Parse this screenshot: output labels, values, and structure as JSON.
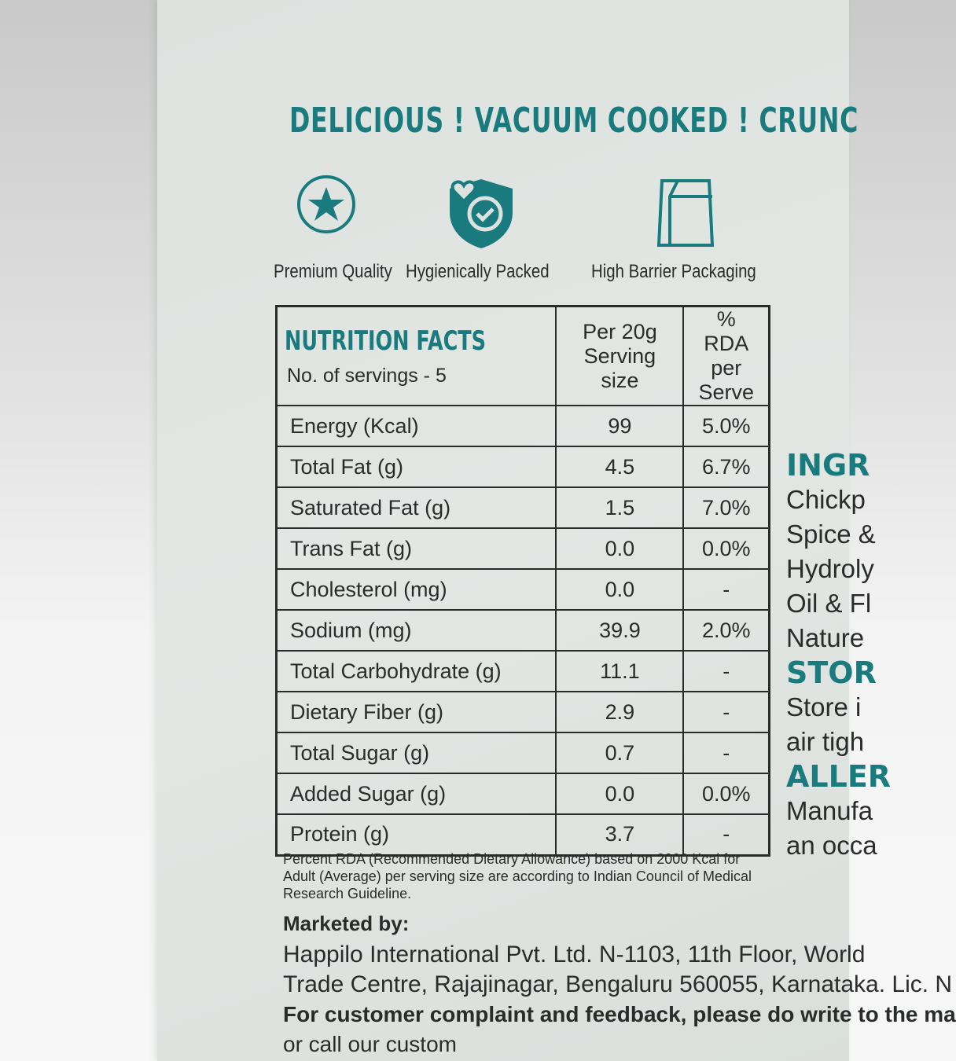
{
  "tagline": "DELICIOUS ! VACUUM COOKED ! CRUNC",
  "badges": [
    {
      "label": "Premium Quality",
      "icon": "star-icon"
    },
    {
      "label": "Hygienically Packed",
      "icon": "shield-check-icon"
    },
    {
      "label": "High Barrier Packaging",
      "icon": "pouch-icon"
    }
  ],
  "nutrition": {
    "title": "NUTRITION FACTS",
    "servings": "No. of servings - 5",
    "col1": "Per 20g Serving size",
    "col2": "% RDA per Serve",
    "rows": [
      {
        "name": "Energy (Kcal)",
        "value": "99",
        "rda": "5.0%"
      },
      {
        "name": "Total Fat (g)",
        "value": "4.5",
        "rda": "6.7%"
      },
      {
        "name": "Saturated Fat (g)",
        "value": "1.5",
        "rda": "7.0%"
      },
      {
        "name": "Trans Fat (g)",
        "value": "0.0",
        "rda": "0.0%"
      },
      {
        "name": "Cholesterol (mg)",
        "value": "0.0",
        "rda": "-"
      },
      {
        "name": "Sodium (mg)",
        "value": "39.9",
        "rda": "2.0%"
      },
      {
        "name": "Total Carbohydrate (g)",
        "value": "11.1",
        "rda": "-"
      },
      {
        "name": "Dietary Fiber (g)",
        "value": "2.9",
        "rda": "-"
      },
      {
        "name": "Total Sugar (g)",
        "value": "0.7",
        "rda": "-"
      },
      {
        "name": "Added Sugar (g)",
        "value": "0.0",
        "rda": "0.0%"
      },
      {
        "name": "Protein (g)",
        "value": "3.7",
        "rda": "-"
      }
    ],
    "footnote": "Percent RDA (Recommended Dietary Allowance) based on 2000 Kcal for Adult (Average) per serving size are according to Indian Council of Medical Research Guideline."
  },
  "marketed": {
    "heading": "Marketed by:",
    "lines": [
      "Happilo International Pvt. Ltd. N-1103, 11th Floor, World",
      "Trade Centre, Rajajinagar, Bengaluru 560055, Karnataka.  Lic. N",
      "For customer complaint and feedback, please do write to the ma",
      "or call our custom"
    ]
  },
  "right": {
    "ingr_head": "INGR",
    "ingr": [
      "Chickp",
      "Spice &",
      "Hydroly",
      "Oil & Fl",
      "Nature"
    ],
    "stor_head": "STOR",
    "stor": [
      "Store i",
      "air tigh"
    ],
    "aller_head": "ALLER",
    "aller": [
      "Manufa",
      "an occa"
    ]
  },
  "colors": {
    "teal": "#1a7b7e",
    "text": "#2a2c2c",
    "pack": "#dde2df"
  }
}
